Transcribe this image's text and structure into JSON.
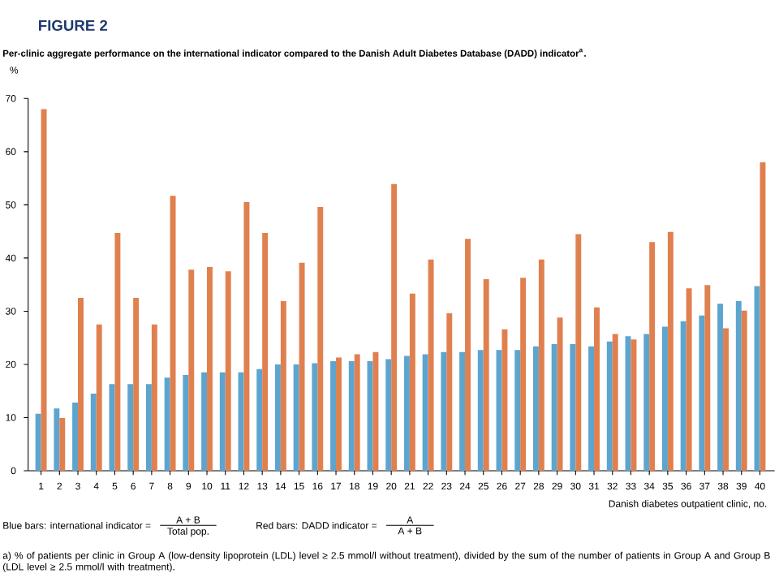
{
  "chart_data": {
    "type": "bar",
    "title": "FIGURE 2",
    "subtitle": "Per-clinic aggregate performance on the international indicator compared to the Danish Adult Diabetes Database (DADD) indicator$^{a}$.",
    "ylabel": "%",
    "xlabel": "Danish diabetes outpatient clinic, no.",
    "categories": [
      "1",
      "2",
      "3",
      "4",
      "5",
      "6",
      "7",
      "8",
      "9",
      "10",
      "11",
      "12",
      "13",
      "14",
      "15",
      "16",
      "17",
      "18",
      "19",
      "20",
      "21",
      "22",
      "23",
      "24",
      "25",
      "26",
      "27",
      "28",
      "29",
      "30",
      "31",
      "32",
      "33",
      "34",
      "35",
      "36",
      "37",
      "38",
      "39",
      "40"
    ],
    "series": [
      {
        "color": "#5da5cf",
        "values": [
          10.7,
          11.7,
          12.8,
          14.5,
          16.3,
          16.3,
          16.3,
          17.5,
          18,
          18.5,
          18.5,
          18.5,
          19.1,
          20,
          20,
          20.2,
          20.6,
          20.6,
          20.6,
          21,
          21.6,
          21.9,
          22.3,
          22.3,
          22.7,
          22.7,
          22.7,
          23.4,
          23.8,
          23.8,
          23.4,
          24.3,
          25.3,
          25.7,
          27.1,
          28.1,
          29.2,
          31.4,
          31.9,
          34.7
        ]
      },
      {
        "color": "#e0804f",
        "values": [
          68,
          9.9,
          32.5,
          27.5,
          44.7,
          32.5,
          27.5,
          51.7,
          37.8,
          38.3,
          37.5,
          50.5,
          44.7,
          31.9,
          39.1,
          49.6,
          21.3,
          21.9,
          22.3,
          53.9,
          33.3,
          39.7,
          29.6,
          43.6,
          36,
          26.6,
          36.3,
          39.7,
          28.8,
          44.5,
          30.7,
          25.7,
          24.7,
          43,
          44.9,
          34.3,
          34.9,
          26.8,
          30.1,
          58
        ]
      }
    ],
    "ylim": [
      0,
      70
    ],
    "yticks": [
      0,
      10,
      20,
      30,
      40,
      50,
      60,
      70
    ],
    "annotations": [
      "Blue bars: international indicator =",
      "A + B",
      "Total pop.",
      "Red bars: DADD indicator =",
      "A",
      "A + B",
      "a) % of patients per clinic in Group A (low-density lipoprotein (LDL) level ≥ 2.5 mmol/l without treatment), divided by the sum of the number of patients in Group A and Group B (LDL level ≥ 2.5 mmol/l with treatment)."
    ]
  }
}
